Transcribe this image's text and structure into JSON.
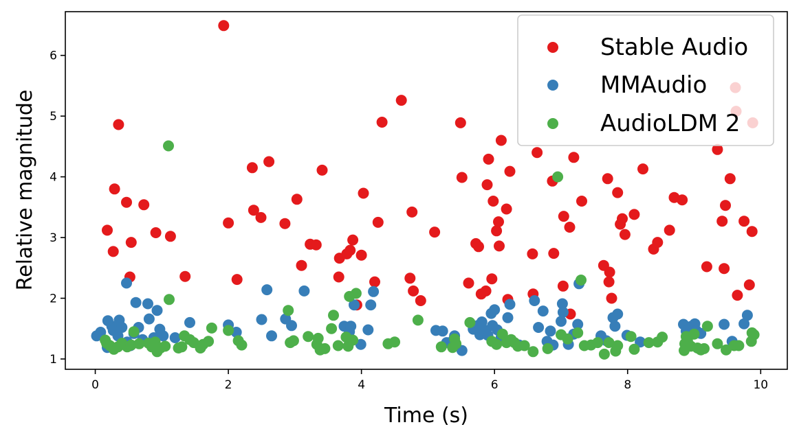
{
  "chart_data": {
    "type": "scatter",
    "title": "",
    "xlabel": "Time (s)",
    "ylabel": "Relative magnitude",
    "xlim": [
      -0.45,
      10.4
    ],
    "ylim": [
      0.83,
      6.72
    ],
    "xticks": [
      0,
      2,
      4,
      6,
      8,
      10
    ],
    "yticks": [
      1,
      2,
      3,
      4,
      5,
      6
    ],
    "legend_position": "top-right",
    "grid": false,
    "series": [
      {
        "name": "Stable Audio",
        "color": "#e41a1c",
        "points": [
          [
            0.18,
            3.12
          ],
          [
            0.27,
            2.77
          ],
          [
            0.29,
            3.8
          ],
          [
            0.35,
            4.86
          ],
          [
            0.47,
            3.58
          ],
          [
            0.52,
            2.35
          ],
          [
            0.54,
            2.92
          ],
          [
            0.73,
            3.54
          ],
          [
            0.91,
            3.08
          ],
          [
            1.13,
            3.02
          ],
          [
            1.35,
            2.36
          ],
          [
            1.93,
            6.49
          ],
          [
            2.0,
            3.24
          ],
          [
            2.13,
            2.31
          ],
          [
            2.36,
            4.15
          ],
          [
            2.38,
            3.45
          ],
          [
            2.49,
            3.33
          ],
          [
            2.61,
            4.25
          ],
          [
            2.85,
            3.23
          ],
          [
            3.03,
            3.63
          ],
          [
            3.1,
            2.54
          ],
          [
            3.23,
            2.89
          ],
          [
            3.32,
            2.88
          ],
          [
            3.41,
            4.11
          ],
          [
            3.66,
            2.35
          ],
          [
            3.67,
            2.66
          ],
          [
            3.78,
            2.73
          ],
          [
            3.83,
            2.79
          ],
          [
            3.87,
            2.96
          ],
          [
            3.93,
            1.89
          ],
          [
            4.0,
            2.71
          ],
          [
            4.03,
            3.73
          ],
          [
            4.2,
            2.27
          ],
          [
            4.25,
            3.25
          ],
          [
            4.31,
            4.9
          ],
          [
            4.6,
            5.26
          ],
          [
            4.73,
            2.33
          ],
          [
            4.76,
            3.42
          ],
          [
            4.78,
            2.12
          ],
          [
            4.89,
            1.96
          ],
          [
            5.1,
            3.09
          ],
          [
            5.49,
            4.89
          ],
          [
            5.51,
            3.99
          ],
          [
            5.61,
            2.25
          ],
          [
            5.72,
            2.9
          ],
          [
            5.76,
            2.85
          ],
          [
            5.8,
            2.07
          ],
          [
            5.87,
            2.12
          ],
          [
            5.89,
            3.87
          ],
          [
            5.91,
            4.29
          ],
          [
            5.96,
            2.32
          ],
          [
            5.98,
            3.6
          ],
          [
            6.03,
            3.11
          ],
          [
            6.06,
            3.26
          ],
          [
            6.07,
            2.86
          ],
          [
            6.1,
            4.6
          ],
          [
            6.18,
            3.47
          ],
          [
            6.2,
            1.98
          ],
          [
            6.23,
            4.09
          ],
          [
            6.57,
            2.73
          ],
          [
            6.58,
            2.07
          ],
          [
            6.64,
            4.4
          ],
          [
            6.87,
            3.93
          ],
          [
            6.89,
            2.74
          ],
          [
            7.03,
            2.2
          ],
          [
            7.04,
            3.35
          ],
          [
            7.13,
            3.17
          ],
          [
            7.14,
            1.74
          ],
          [
            7.19,
            4.32
          ],
          [
            7.31,
            3.6
          ],
          [
            7.64,
            2.54
          ],
          [
            7.7,
            3.97
          ],
          [
            7.72,
            2.27
          ],
          [
            7.73,
            2.43
          ],
          [
            7.76,
            2.0
          ],
          [
            7.85,
            3.74
          ],
          [
            7.89,
            3.22
          ],
          [
            7.92,
            3.31
          ],
          [
            7.96,
            3.05
          ],
          [
            8.1,
            3.38
          ],
          [
            8.23,
            4.13
          ],
          [
            8.39,
            2.81
          ],
          [
            8.45,
            2.92
          ],
          [
            8.63,
            3.12
          ],
          [
            8.7,
            3.66
          ],
          [
            8.82,
            3.62
          ],
          [
            9.19,
            2.52
          ],
          [
            9.35,
            4.45
          ],
          [
            9.42,
            3.27
          ],
          [
            9.45,
            2.49
          ],
          [
            9.47,
            3.53
          ],
          [
            9.54,
            3.97
          ],
          [
            9.62,
            5.47
          ],
          [
            9.63,
            5.08
          ],
          [
            9.65,
            2.05
          ],
          [
            9.75,
            3.27
          ],
          [
            9.83,
            2.22
          ],
          [
            9.87,
            3.1
          ],
          [
            9.88,
            4.89
          ]
        ]
      },
      {
        "name": "MMAudio",
        "color": "#377eb8",
        "points": [
          [
            0.02,
            1.38
          ],
          [
            0.08,
            1.44
          ],
          [
            0.18,
            1.19
          ],
          [
            0.19,
            1.63
          ],
          [
            0.25,
            1.54
          ],
          [
            0.27,
            1.47
          ],
          [
            0.34,
            1.38
          ],
          [
            0.36,
            1.64
          ],
          [
            0.4,
            1.52
          ],
          [
            0.47,
            2.25
          ],
          [
            0.48,
            1.28
          ],
          [
            0.53,
            1.22
          ],
          [
            0.58,
            1.42
          ],
          [
            0.61,
            1.93
          ],
          [
            0.65,
            1.52
          ],
          [
            0.71,
            1.32
          ],
          [
            0.79,
            1.91
          ],
          [
            0.81,
            1.66
          ],
          [
            0.88,
            1.35
          ],
          [
            0.93,
            1.8
          ],
          [
            0.97,
            1.49
          ],
          [
            1.02,
            1.38
          ],
          [
            1.2,
            1.35
          ],
          [
            1.42,
            1.6
          ],
          [
            2.0,
            1.56
          ],
          [
            2.12,
            1.44
          ],
          [
            2.5,
            1.65
          ],
          [
            2.58,
            2.14
          ],
          [
            2.65,
            1.38
          ],
          [
            2.86,
            1.66
          ],
          [
            2.95,
            1.55
          ],
          [
            3.14,
            2.12
          ],
          [
            3.74,
            1.54
          ],
          [
            3.82,
            1.45
          ],
          [
            3.84,
            1.54
          ],
          [
            3.89,
            1.89
          ],
          [
            3.99,
            1.24
          ],
          [
            4.1,
            1.48
          ],
          [
            4.14,
            1.89
          ],
          [
            4.18,
            2.11
          ],
          [
            5.12,
            1.47
          ],
          [
            5.22,
            1.46
          ],
          [
            5.28,
            1.27
          ],
          [
            5.38,
            1.31
          ],
          [
            5.4,
            1.38
          ],
          [
            5.51,
            1.14
          ],
          [
            5.68,
            1.49
          ],
          [
            5.75,
            1.55
          ],
          [
            5.78,
            1.4
          ],
          [
            5.81,
            1.61
          ],
          [
            5.83,
            1.43
          ],
          [
            5.87,
            1.47
          ],
          [
            5.9,
            1.39
          ],
          [
            5.95,
            1.75
          ],
          [
            5.97,
            1.55
          ],
          [
            6.0,
            1.81
          ],
          [
            6.04,
            1.48
          ],
          [
            6.1,
            1.36
          ],
          [
            6.2,
            1.68
          ],
          [
            6.23,
            1.9
          ],
          [
            6.25,
            1.3
          ],
          [
            6.37,
            1.23
          ],
          [
            6.6,
            1.96
          ],
          [
            6.66,
            1.52
          ],
          [
            6.73,
            1.79
          ],
          [
            6.79,
            1.29
          ],
          [
            6.84,
            1.46
          ],
          [
            6.88,
            1.23
          ],
          [
            7.0,
            1.62
          ],
          [
            7.02,
            1.91
          ],
          [
            7.03,
            1.77
          ],
          [
            7.11,
            1.24
          ],
          [
            7.19,
            1.41
          ],
          [
            7.25,
            1.57
          ],
          [
            7.27,
            2.24
          ],
          [
            7.6,
            1.38
          ],
          [
            7.68,
            1.3
          ],
          [
            7.78,
            1.68
          ],
          [
            7.81,
            1.54
          ],
          [
            7.85,
            1.74
          ],
          [
            7.99,
            1.39
          ],
          [
            8.19,
            1.28
          ],
          [
            8.84,
            1.57
          ],
          [
            8.88,
            1.46
          ],
          [
            8.96,
            1.54
          ],
          [
            9.01,
            1.58
          ],
          [
            9.03,
            1.47
          ],
          [
            9.1,
            1.42
          ],
          [
            9.45,
            1.57
          ],
          [
            9.57,
            1.29
          ],
          [
            9.75,
            1.58
          ],
          [
            9.8,
            1.72
          ]
        ]
      },
      {
        "name": "AudioLDM 2",
        "color": "#4daf4a",
        "points": [
          [
            0.15,
            1.31
          ],
          [
            0.17,
            1.26
          ],
          [
            0.22,
            1.22
          ],
          [
            0.28,
            1.16
          ],
          [
            0.34,
            1.2
          ],
          [
            0.4,
            1.26
          ],
          [
            0.48,
            1.2
          ],
          [
            0.54,
            1.23
          ],
          [
            0.58,
            1.45
          ],
          [
            0.66,
            1.25
          ],
          [
            0.8,
            1.26
          ],
          [
            0.85,
            1.2
          ],
          [
            0.9,
            1.28
          ],
          [
            0.93,
            1.12
          ],
          [
            0.98,
            1.18
          ],
          [
            1.05,
            1.21
          ],
          [
            1.1,
            4.51
          ],
          [
            1.11,
            1.98
          ],
          [
            1.25,
            1.18
          ],
          [
            1.3,
            1.2
          ],
          [
            1.34,
            1.38
          ],
          [
            1.42,
            1.32
          ],
          [
            1.48,
            1.27
          ],
          [
            1.58,
            1.18
          ],
          [
            1.62,
            1.24
          ],
          [
            1.7,
            1.29
          ],
          [
            1.75,
            1.51
          ],
          [
            2.0,
            1.47
          ],
          [
            2.15,
            1.3
          ],
          [
            2.2,
            1.23
          ],
          [
            2.9,
            1.8
          ],
          [
            2.93,
            1.27
          ],
          [
            2.98,
            1.3
          ],
          [
            3.2,
            1.37
          ],
          [
            3.33,
            1.24
          ],
          [
            3.35,
            1.34
          ],
          [
            3.38,
            1.15
          ],
          [
            3.45,
            1.17
          ],
          [
            3.55,
            1.5
          ],
          [
            3.58,
            1.72
          ],
          [
            3.65,
            1.22
          ],
          [
            3.77,
            1.36
          ],
          [
            3.8,
            1.21
          ],
          [
            3.82,
            2.03
          ],
          [
            3.87,
            1.31
          ],
          [
            3.92,
            2.08
          ],
          [
            4.4,
            1.25
          ],
          [
            4.5,
            1.28
          ],
          [
            4.85,
            1.64
          ],
          [
            5.2,
            1.2
          ],
          [
            5.37,
            1.19
          ],
          [
            5.4,
            1.33
          ],
          [
            5.42,
            1.25
          ],
          [
            5.63,
            1.6
          ],
          [
            5.96,
            1.29
          ],
          [
            6.03,
            1.24
          ],
          [
            6.12,
            1.41
          ],
          [
            6.18,
            1.27
          ],
          [
            6.25,
            1.32
          ],
          [
            6.3,
            1.27
          ],
          [
            6.35,
            1.21
          ],
          [
            6.45,
            1.22
          ],
          [
            6.58,
            1.12
          ],
          [
            6.8,
            1.17
          ],
          [
            6.95,
            4.0
          ],
          [
            7.0,
            1.4
          ],
          [
            7.1,
            1.33
          ],
          [
            7.25,
            1.43
          ],
          [
            7.3,
            2.3
          ],
          [
            7.35,
            1.22
          ],
          [
            7.45,
            1.23
          ],
          [
            7.55,
            1.27
          ],
          [
            7.65,
            1.08
          ],
          [
            7.72,
            1.27
          ],
          [
            7.82,
            1.13
          ],
          [
            7.85,
            1.22
          ],
          [
            8.05,
            1.37
          ],
          [
            8.1,
            1.16
          ],
          [
            8.32,
            1.27
          ],
          [
            8.45,
            1.28
          ],
          [
            8.52,
            1.36
          ],
          [
            8.85,
            1.14
          ],
          [
            8.86,
            1.25
          ],
          [
            8.88,
            1.37
          ],
          [
            8.9,
            1.3
          ],
          [
            8.95,
            1.21
          ],
          [
            9.0,
            1.41
          ],
          [
            9.05,
            1.18
          ],
          [
            9.1,
            1.15
          ],
          [
            9.15,
            1.17
          ],
          [
            9.2,
            1.54
          ],
          [
            9.35,
            1.25
          ],
          [
            9.48,
            1.15
          ],
          [
            9.6,
            1.22
          ],
          [
            9.67,
            1.22
          ],
          [
            9.86,
            1.29
          ],
          [
            9.87,
            1.43
          ],
          [
            9.9,
            1.4
          ]
        ]
      }
    ]
  }
}
